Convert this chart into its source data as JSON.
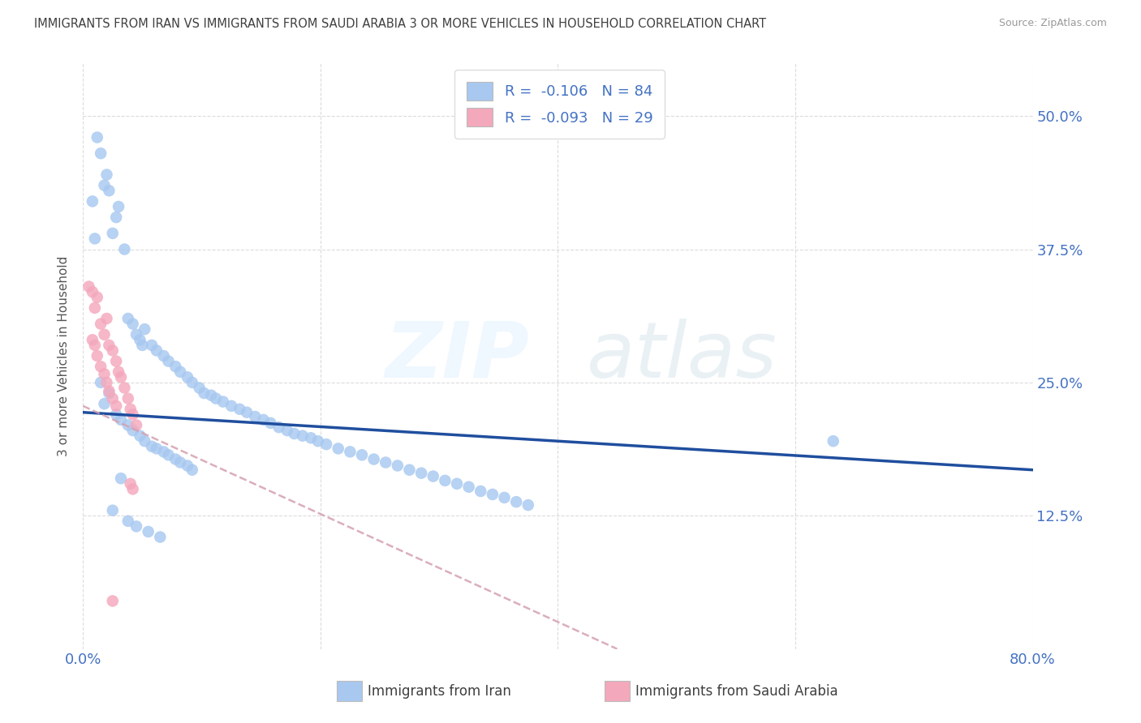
{
  "title": "IMMIGRANTS FROM IRAN VS IMMIGRANTS FROM SAUDI ARABIA 3 OR MORE VEHICLES IN HOUSEHOLD CORRELATION CHART",
  "source": "Source: ZipAtlas.com",
  "ylabel": "3 or more Vehicles in Household",
  "ytick_labels": [
    "12.5%",
    "25.0%",
    "37.5%",
    "50.0%"
  ],
  "ytick_values": [
    0.125,
    0.25,
    0.375,
    0.5
  ],
  "xlim": [
    0.0,
    0.8
  ],
  "ylim": [
    0.0,
    0.55
  ],
  "legend_iran_r": "-0.106",
  "legend_iran_n": "84",
  "legend_saudi_r": "-0.093",
  "legend_saudi_n": "29",
  "iran_color": "#a8c8f0",
  "saudi_color": "#f4a8bc",
  "trendline_iran_color": "#1f4e9e",
  "trendline_saudi_color": "#d4a0b0",
  "iran_scatter_x": [
    0.018,
    0.02,
    0.022,
    0.025,
    0.012,
    0.015,
    0.008,
    0.03,
    0.028,
    0.01,
    0.035,
    0.038,
    0.042,
    0.045,
    0.048,
    0.05,
    0.052,
    0.058,
    0.062,
    0.068,
    0.072,
    0.078,
    0.082,
    0.088,
    0.092,
    0.098,
    0.102,
    0.108,
    0.112,
    0.118,
    0.125,
    0.132,
    0.138,
    0.145,
    0.152,
    0.158,
    0.165,
    0.172,
    0.178,
    0.185,
    0.192,
    0.198,
    0.205,
    0.215,
    0.225,
    0.235,
    0.245,
    0.255,
    0.265,
    0.275,
    0.285,
    0.295,
    0.305,
    0.315,
    0.325,
    0.335,
    0.345,
    0.355,
    0.365,
    0.375,
    0.015,
    0.018,
    0.022,
    0.028,
    0.032,
    0.038,
    0.042,
    0.048,
    0.052,
    0.058,
    0.062,
    0.068,
    0.072,
    0.078,
    0.082,
    0.088,
    0.092,
    0.032,
    0.025,
    0.038,
    0.045,
    0.055,
    0.065,
    0.632
  ],
  "iran_scatter_y": [
    0.435,
    0.445,
    0.43,
    0.39,
    0.48,
    0.465,
    0.42,
    0.415,
    0.405,
    0.385,
    0.375,
    0.31,
    0.305,
    0.295,
    0.29,
    0.285,
    0.3,
    0.285,
    0.28,
    0.275,
    0.27,
    0.265,
    0.26,
    0.255,
    0.25,
    0.245,
    0.24,
    0.238,
    0.235,
    0.232,
    0.228,
    0.225,
    0.222,
    0.218,
    0.215,
    0.212,
    0.208,
    0.205,
    0.202,
    0.2,
    0.198,
    0.195,
    0.192,
    0.188,
    0.185,
    0.182,
    0.178,
    0.175,
    0.172,
    0.168,
    0.165,
    0.162,
    0.158,
    0.155,
    0.152,
    0.148,
    0.145,
    0.142,
    0.138,
    0.135,
    0.25,
    0.23,
    0.24,
    0.22,
    0.215,
    0.21,
    0.205,
    0.2,
    0.195,
    0.19,
    0.188,
    0.185,
    0.182,
    0.178,
    0.175,
    0.172,
    0.168,
    0.16,
    0.13,
    0.12,
    0.115,
    0.11,
    0.105,
    0.195
  ],
  "saudi_scatter_x": [
    0.005,
    0.008,
    0.01,
    0.012,
    0.015,
    0.018,
    0.02,
    0.022,
    0.025,
    0.028,
    0.03,
    0.032,
    0.035,
    0.038,
    0.04,
    0.042,
    0.045,
    0.008,
    0.01,
    0.012,
    0.015,
    0.018,
    0.02,
    0.022,
    0.025,
    0.028,
    0.04,
    0.042,
    0.025
  ],
  "saudi_scatter_y": [
    0.34,
    0.335,
    0.32,
    0.33,
    0.305,
    0.295,
    0.31,
    0.285,
    0.28,
    0.27,
    0.26,
    0.255,
    0.245,
    0.235,
    0.225,
    0.22,
    0.21,
    0.29,
    0.285,
    0.275,
    0.265,
    0.258,
    0.25,
    0.242,
    0.235,
    0.228,
    0.155,
    0.15,
    0.045
  ],
  "grid_color": "#cccccc",
  "background_color": "#ffffff",
  "axis_color": "#4472c4",
  "title_color": "#404040"
}
